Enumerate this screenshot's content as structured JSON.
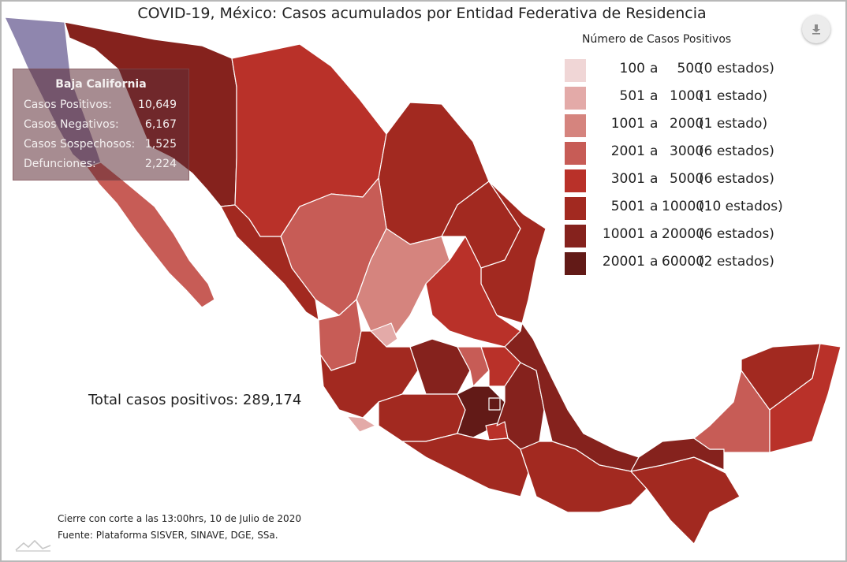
{
  "title": "COVID-19, México: Casos acumulados por Entidad Federativa de Residencia",
  "legend": {
    "title": "Número de Casos Positivos",
    "items": [
      {
        "from": "100",
        "sep": "a",
        "to": "500",
        "count": "(0 estados)",
        "color": "#f0d6d6"
      },
      {
        "from": "501",
        "sep": "a",
        "to": "1000",
        "count": "(1 estado)",
        "color": "#e3aaa8"
      },
      {
        "from": "1001",
        "sep": "a",
        "to": "2000",
        "count": "(1 estado)",
        "color": "#d5847e"
      },
      {
        "from": "2001",
        "sep": "a",
        "to": "3000",
        "count": "(6 estados)",
        "color": "#c75c56"
      },
      {
        "from": "3001",
        "sep": "a",
        "to": "5000",
        "count": "(6 estados)",
        "color": "#b93129"
      },
      {
        "from": "5001",
        "sep": "a",
        "to": "10000",
        "count": "(10 estados)",
        "color": "#a22920"
      },
      {
        "from": "10001",
        "sep": "a",
        "to": "20000",
        "count": "(6 estados)",
        "color": "#85221d"
      },
      {
        "from": "20001",
        "sep": "a",
        "to": "60000",
        "count": "(2 estados)",
        "color": "#621a17"
      }
    ]
  },
  "total": "Total casos positivos: 289,174",
  "footer": {
    "cutoff": "Cierre con corte a las 13:00hrs, 10 de Julio de 2020",
    "source": "Fuente: Plataforma SISVER, SINAVE, DGE, SSa."
  },
  "tooltip": {
    "state": "Baja California",
    "rows": [
      {
        "label": "Casos Positivos:",
        "value": "10,649"
      },
      {
        "label": "Casos Negativos:",
        "value": "6,167"
      },
      {
        "label": "Casos Sospechosos:",
        "value": "1,525"
      },
      {
        "label": "Defunciones:",
        "value": "2,224"
      }
    ]
  },
  "colors": {
    "hover": "#8f86ae",
    "border": "#ffffff",
    "frame": "#b8b8b8"
  },
  "icons": {
    "download": "download-icon",
    "watermark": "mountain-logo-icon"
  }
}
